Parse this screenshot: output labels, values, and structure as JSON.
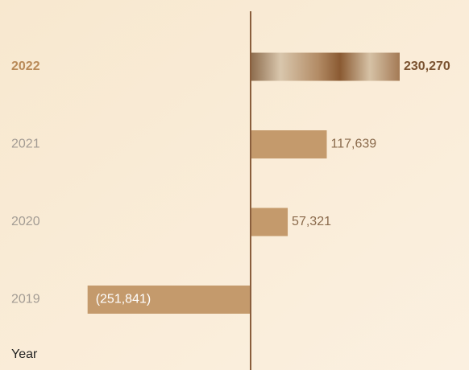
{
  "chart_data": {
    "type": "bar",
    "orientation": "horizontal",
    "ylabel": "Year",
    "categories": [
      "2022",
      "2021",
      "2020",
      "2019"
    ],
    "values": [
      230270,
      117639,
      57321,
      -251841
    ],
    "value_labels": [
      "230,270",
      "117,639",
      "57,321",
      "(251,841)"
    ],
    "color": "#c49a6c",
    "highlight": 0,
    "highlight_color": "#b98a58",
    "xlim": [
      -300000,
      300000
    ]
  }
}
